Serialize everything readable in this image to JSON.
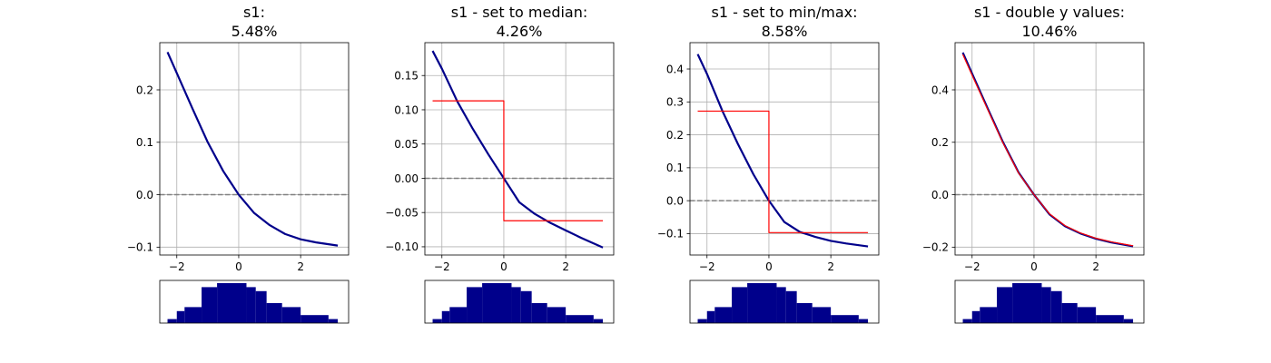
{
  "chart_data": [
    {
      "type": "line",
      "title": [
        "s1:",
        "5.48%"
      ],
      "xlim": [
        -2.55,
        3.55
      ],
      "ylim": [
        -0.115,
        0.29
      ],
      "xticks": [
        -2,
        0,
        2
      ],
      "xtick_labels": [
        "−2",
        "0",
        "2"
      ],
      "yticks": [
        -0.1,
        0.0,
        0.1,
        0.2
      ],
      "ytick_labels": [
        "−0.1",
        "0.0",
        "0.1",
        "0.2"
      ],
      "grid": true,
      "reference_line": {
        "y": 0,
        "style": "dashed",
        "color": "#808080"
      },
      "series": [
        {
          "color": "#00008B",
          "x": [
            -2.3,
            -2.0,
            -1.5,
            -1.0,
            -0.5,
            0.0,
            0.5,
            1.0,
            1.5,
            2.0,
            2.5,
            3.2
          ],
          "y": [
            0.272,
            0.232,
            0.165,
            0.1,
            0.045,
            0.0,
            -0.035,
            -0.058,
            -0.075,
            -0.085,
            -0.091,
            -0.097
          ]
        }
      ],
      "histogram": {
        "bins": [
          -2.3,
          -2.0,
          -1.75,
          -1.2,
          -0.7,
          0.25,
          0.55,
          0.9,
          1.4,
          2.0,
          2.9,
          3.2
        ],
        "counts": [
          1,
          3,
          4,
          9,
          10,
          9,
          8,
          5,
          4,
          2,
          1
        ]
      }
    },
    {
      "type": "line",
      "title": [
        "s1 - set to median:",
        "4.26%"
      ],
      "xlim": [
        -2.55,
        3.55
      ],
      "ylim": [
        -0.112,
        0.198
      ],
      "xticks": [
        -2,
        0,
        2
      ],
      "xtick_labels": [
        "−2",
        "0",
        "2"
      ],
      "yticks": [
        -0.1,
        -0.05,
        0.0,
        0.05,
        0.1,
        0.15
      ],
      "ytick_labels": [
        "−0.10",
        "−0.05",
        "0.00",
        "0.05",
        "0.10",
        "0.15"
      ],
      "grid": true,
      "reference_line": {
        "y": 0,
        "style": "dashed",
        "color": "#808080"
      },
      "series": [
        {
          "color": "#00008B",
          "x": [
            -2.3,
            -2.0,
            -1.5,
            -1.0,
            -0.5,
            0.0,
            0.5,
            1.0,
            1.5,
            2.0,
            2.5,
            3.2
          ],
          "y": [
            0.186,
            0.16,
            0.112,
            0.072,
            0.035,
            0.0,
            -0.035,
            -0.052,
            -0.065,
            -0.076,
            -0.087,
            -0.101
          ]
        },
        {
          "color": "#FF0000",
          "x": [
            -2.3,
            0.0,
            0.0,
            3.2
          ],
          "y": [
            0.113,
            0.113,
            -0.062,
            -0.062
          ]
        }
      ],
      "histogram": {
        "bins": [
          -2.3,
          -2.0,
          -1.75,
          -1.2,
          -0.7,
          0.25,
          0.55,
          0.9,
          1.4,
          2.0,
          2.9,
          3.2
        ],
        "counts": [
          1,
          3,
          4,
          9,
          10,
          9,
          8,
          5,
          4,
          2,
          1
        ]
      }
    },
    {
      "type": "line",
      "title": [
        "s1 - set to min/max:",
        "8.58%"
      ],
      "xlim": [
        -2.55,
        3.55
      ],
      "ylim": [
        -0.165,
        0.48
      ],
      "xticks": [
        -2,
        0,
        2
      ],
      "xtick_labels": [
        "−2",
        "0",
        "2"
      ],
      "yticks": [
        -0.1,
        0.0,
        0.1,
        0.2,
        0.3,
        0.4
      ],
      "ytick_labels": [
        "−0.1",
        "0.0",
        "0.1",
        "0.2",
        "0.3",
        "0.4"
      ],
      "grid": true,
      "reference_line": {
        "y": 0,
        "style": "dashed",
        "color": "#808080"
      },
      "series": [
        {
          "color": "#00008B",
          "x": [
            -2.3,
            -2.0,
            -1.5,
            -1.0,
            -0.5,
            0.0,
            0.5,
            1.0,
            1.5,
            2.0,
            2.5,
            3.2
          ],
          "y": [
            0.445,
            0.385,
            0.272,
            0.172,
            0.08,
            0.0,
            -0.065,
            -0.095,
            -0.11,
            -0.122,
            -0.13,
            -0.139
          ]
        },
        {
          "color": "#FF0000",
          "x": [
            -2.3,
            0.0,
            0.0,
            3.2
          ],
          "y": [
            0.272,
            0.272,
            -0.097,
            -0.097
          ]
        }
      ],
      "histogram": {
        "bins": [
          -2.3,
          -2.0,
          -1.75,
          -1.2,
          -0.7,
          0.25,
          0.55,
          0.9,
          1.4,
          2.0,
          2.9,
          3.2
        ],
        "counts": [
          1,
          3,
          4,
          9,
          10,
          9,
          8,
          5,
          4,
          2,
          1
        ]
      }
    },
    {
      "type": "line",
      "title": [
        "s1 - double y values:",
        "10.46%"
      ],
      "xlim": [
        -2.55,
        3.55
      ],
      "ylim": [
        -0.23,
        0.58
      ],
      "xticks": [
        -2,
        0,
        2
      ],
      "xtick_labels": [
        "−2",
        "0",
        "2"
      ],
      "yticks": [
        -0.2,
        0.0,
        0.2,
        0.4
      ],
      "ytick_labels": [
        "−0.2",
        "0.0",
        "0.2",
        "0.4"
      ],
      "grid": true,
      "reference_line": {
        "y": 0,
        "style": "dashed",
        "color": "#808080"
      },
      "series": [
        {
          "color": "#00008B",
          "x": [
            -2.3,
            -2.0,
            -1.5,
            -1.0,
            -0.5,
            0.0,
            0.5,
            1.0,
            1.5,
            2.0,
            2.5,
            3.2
          ],
          "y": [
            0.542,
            0.462,
            0.33,
            0.2,
            0.085,
            0.0,
            -0.075,
            -0.12,
            -0.148,
            -0.168,
            -0.182,
            -0.197
          ]
        },
        {
          "color": "#FF0000",
          "x": [
            -2.3,
            -2.0,
            -1.5,
            -1.0,
            -0.5,
            0.0,
            0.5,
            1.0,
            1.5,
            2.0,
            2.5,
            3.2
          ],
          "y": [
            0.535,
            0.456,
            0.326,
            0.197,
            0.083,
            0.0,
            -0.073,
            -0.118,
            -0.146,
            -0.166,
            -0.18,
            -0.195
          ]
        }
      ],
      "histogram": {
        "bins": [
          -2.3,
          -2.0,
          -1.75,
          -1.2,
          -0.7,
          0.25,
          0.55,
          0.9,
          1.4,
          2.0,
          2.9,
          3.2
        ],
        "counts": [
          1,
          3,
          4,
          9,
          10,
          9,
          8,
          5,
          4,
          2,
          1
        ]
      }
    }
  ]
}
